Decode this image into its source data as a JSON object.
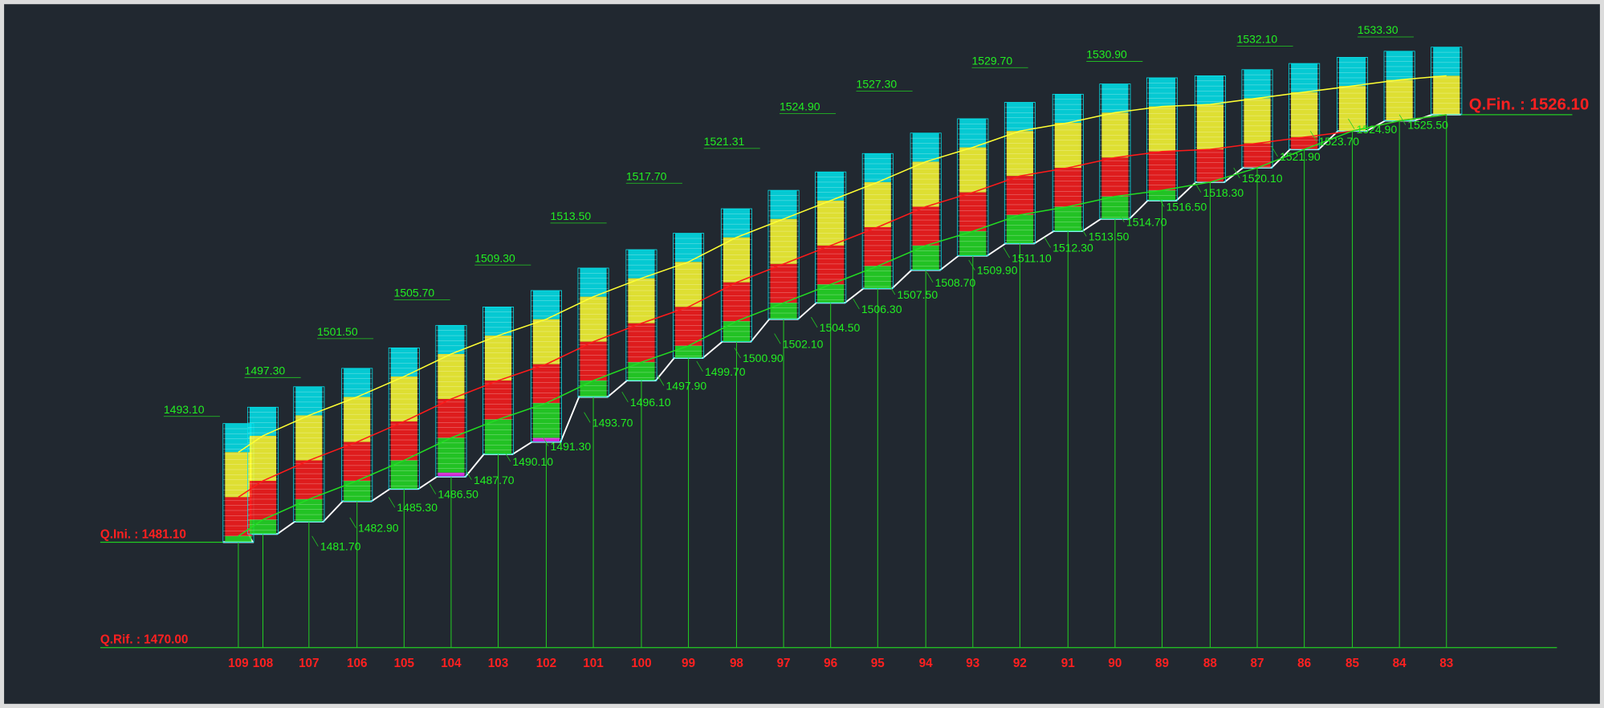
{
  "profile": {
    "reference_level": "Q.Rif. : 1470.00",
    "start_level": "Q.Ini. : 1481.10",
    "end_level": "Q.Fin. : 1526.10",
    "stations": [
      "109",
      "108",
      "107",
      "106",
      "105",
      "104",
      "103",
      "102",
      "101",
      "100",
      "99",
      "98",
      "97",
      "96",
      "95",
      "94",
      "93",
      "92",
      "91",
      "90",
      "89",
      "88",
      "87",
      "86",
      "85",
      "84",
      "83"
    ],
    "top_labels": [
      "1493.10",
      "1497.30",
      "1501.50",
      "1505.70",
      "1509.30",
      "1513.50",
      "1517.70",
      "1521.31",
      "1524.90",
      "1527.30",
      "1529.70",
      "1530.90",
      "1532.10",
      "1533.30"
    ],
    "bottom_labels": [
      "1481.70",
      "1482.90",
      "1485.30",
      "1486.50",
      "1487.70",
      "1490.10",
      "1491.30",
      "1493.70",
      "1496.10",
      "1497.90",
      "1499.70",
      "1500.90",
      "1502.10",
      "1504.50",
      "1506.30",
      "1507.50",
      "1508.70",
      "1509.90",
      "1511.10",
      "1512.30",
      "1513.50",
      "1514.70",
      "1516.50",
      "1518.30",
      "1520.10",
      "1521.90",
      "1523.70",
      "1524.90",
      "1525.50"
    ]
  }
}
